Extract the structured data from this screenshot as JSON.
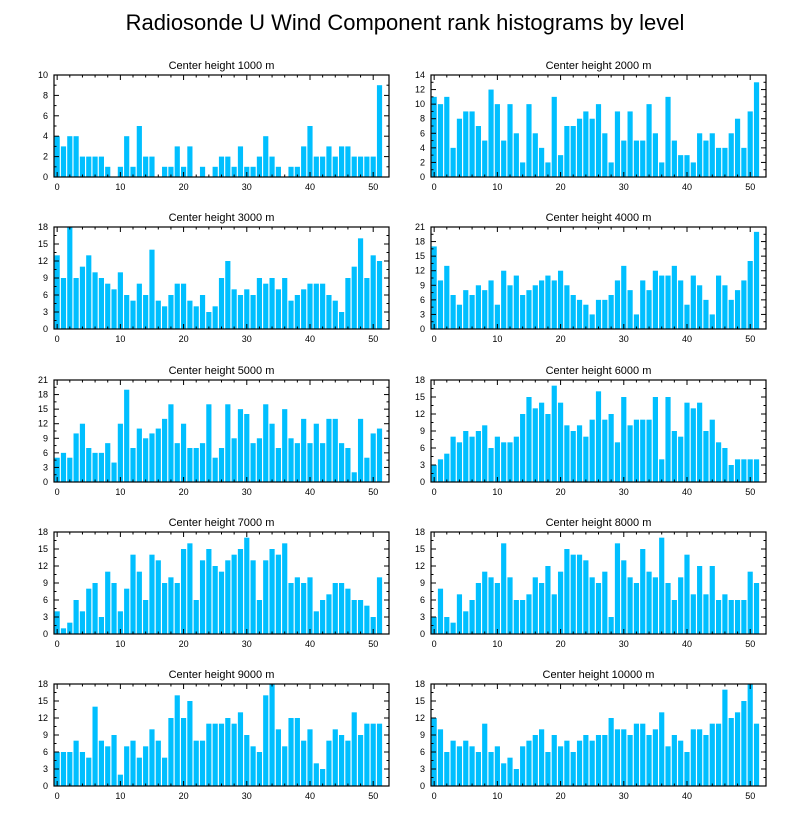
{
  "title": "Radiosonde U Wind Component rank histograms by level",
  "bar_color": "#00bfff",
  "chart_data": [
    {
      "type": "bar",
      "title": "Center height 1000 m",
      "x": [
        0,
        1,
        2,
        3,
        4,
        5,
        6,
        7,
        8,
        9,
        10,
        11,
        12,
        13,
        14,
        15,
        16,
        17,
        18,
        19,
        20,
        21,
        22,
        23,
        24,
        25,
        26,
        27,
        28,
        29,
        30,
        31,
        32,
        33,
        34,
        35,
        36,
        37,
        38,
        39,
        40,
        41,
        42,
        43,
        44,
        45,
        46,
        47,
        48,
        49,
        50,
        51
      ],
      "values": [
        4,
        3,
        4,
        4,
        2,
        2,
        2,
        2,
        1,
        0,
        1,
        4,
        1,
        5,
        2,
        2,
        0,
        1,
        1,
        3,
        1,
        3,
        0,
        1,
        0,
        1,
        2,
        2,
        1,
        3,
        1,
        1,
        2,
        4,
        2,
        1,
        0,
        1,
        1,
        3,
        5,
        2,
        2,
        3,
        2,
        3,
        3,
        2,
        2,
        2,
        2,
        9
      ],
      "xticks": [
        0,
        10,
        20,
        30,
        40,
        50
      ],
      "yticks": [
        0,
        2,
        4,
        6,
        8,
        10
      ],
      "ylim": [
        0,
        10
      ]
    },
    {
      "type": "bar",
      "title": "Center height 2000 m",
      "x": [
        0,
        1,
        2,
        3,
        4,
        5,
        6,
        7,
        8,
        9,
        10,
        11,
        12,
        13,
        14,
        15,
        16,
        17,
        18,
        19,
        20,
        21,
        22,
        23,
        24,
        25,
        26,
        27,
        28,
        29,
        30,
        31,
        32,
        33,
        34,
        35,
        36,
        37,
        38,
        39,
        40,
        41,
        42,
        43,
        44,
        45,
        46,
        47,
        48,
        49,
        50,
        51
      ],
      "values": [
        11,
        10,
        11,
        4,
        8,
        9,
        9,
        7,
        5,
        12,
        10,
        5,
        10,
        6,
        2,
        10,
        6,
        4,
        2,
        11,
        3,
        7,
        7,
        8,
        9,
        8,
        10,
        6,
        2,
        9,
        5,
        9,
        5,
        5,
        10,
        6,
        2,
        11,
        5,
        3,
        3,
        2,
        6,
        5,
        6,
        4,
        4,
        6,
        8,
        4,
        9,
        13
      ],
      "xticks": [
        0,
        10,
        20,
        30,
        40,
        50
      ],
      "yticks": [
        0,
        2,
        4,
        6,
        8,
        10,
        12,
        14
      ],
      "ylim": [
        0,
        14
      ]
    },
    {
      "type": "bar",
      "title": "Center height 3000 m",
      "x": [
        0,
        1,
        2,
        3,
        4,
        5,
        6,
        7,
        8,
        9,
        10,
        11,
        12,
        13,
        14,
        15,
        16,
        17,
        18,
        19,
        20,
        21,
        22,
        23,
        24,
        25,
        26,
        27,
        28,
        29,
        30,
        31,
        32,
        33,
        34,
        35,
        36,
        37,
        38,
        39,
        40,
        41,
        42,
        43,
        44,
        45,
        46,
        47,
        48,
        49,
        50,
        51
      ],
      "values": [
        13,
        9,
        18,
        9,
        11,
        13,
        10,
        9,
        8,
        7,
        10,
        6,
        5,
        8,
        6,
        14,
        5,
        4,
        6,
        8,
        8,
        5,
        4,
        6,
        3,
        4,
        9,
        12,
        7,
        6,
        7,
        6,
        9,
        8,
        9,
        7,
        9,
        5,
        6,
        7,
        8,
        8,
        8,
        6,
        5,
        3,
        9,
        11,
        16,
        9,
        13,
        12
      ],
      "xticks": [
        0,
        10,
        20,
        30,
        40,
        50
      ],
      "yticks": [
        0,
        3,
        6,
        9,
        12,
        15,
        18
      ],
      "ylim": [
        0,
        18
      ]
    },
    {
      "type": "bar",
      "title": "Center height 4000 m",
      "x": [
        0,
        1,
        2,
        3,
        4,
        5,
        6,
        7,
        8,
        9,
        10,
        11,
        12,
        13,
        14,
        15,
        16,
        17,
        18,
        19,
        20,
        21,
        22,
        23,
        24,
        25,
        26,
        27,
        28,
        29,
        30,
        31,
        32,
        33,
        34,
        35,
        36,
        37,
        38,
        39,
        40,
        41,
        42,
        43,
        44,
        45,
        46,
        47,
        48,
        49,
        50,
        51
      ],
      "values": [
        17,
        10,
        13,
        7,
        5,
        8,
        7,
        9,
        8,
        10,
        5,
        12,
        9,
        11,
        7,
        8,
        9,
        10,
        11,
        10,
        12,
        9,
        7,
        6,
        5,
        3,
        6,
        6,
        7,
        10,
        13,
        8,
        3,
        10,
        8,
        12,
        11,
        11,
        13,
        10,
        5,
        11,
        9,
        6,
        3,
        11,
        9,
        6,
        8,
        10,
        14,
        20
      ],
      "xticks": [
        0,
        10,
        20,
        30,
        40,
        50
      ],
      "yticks": [
        0,
        3,
        6,
        9,
        12,
        15,
        18,
        21
      ],
      "ylim": [
        0,
        21
      ]
    },
    {
      "type": "bar",
      "title": "Center height 5000 m",
      "x": [
        0,
        1,
        2,
        3,
        4,
        5,
        6,
        7,
        8,
        9,
        10,
        11,
        12,
        13,
        14,
        15,
        16,
        17,
        18,
        19,
        20,
        21,
        22,
        23,
        24,
        25,
        26,
        27,
        28,
        29,
        30,
        31,
        32,
        33,
        34,
        35,
        36,
        37,
        38,
        39,
        40,
        41,
        42,
        43,
        44,
        45,
        46,
        47,
        48,
        49,
        50,
        51
      ],
      "values": [
        5,
        6,
        5,
        10,
        12,
        7,
        6,
        6,
        8,
        4,
        12,
        19,
        7,
        11,
        9,
        10,
        11,
        13,
        16,
        8,
        12,
        7,
        7,
        8,
        16,
        5,
        7,
        16,
        9,
        15,
        14,
        8,
        9,
        16,
        12,
        7,
        15,
        9,
        8,
        13,
        8,
        12,
        8,
        13,
        13,
        8,
        7,
        2,
        13,
        5,
        10,
        11
      ],
      "xticks": [
        0,
        10,
        20,
        30,
        40,
        50
      ],
      "yticks": [
        0,
        3,
        6,
        9,
        12,
        15,
        18,
        21
      ],
      "ylim": [
        0,
        21
      ]
    },
    {
      "type": "bar",
      "title": "Center height 6000 m",
      "x": [
        0,
        1,
        2,
        3,
        4,
        5,
        6,
        7,
        8,
        9,
        10,
        11,
        12,
        13,
        14,
        15,
        16,
        17,
        18,
        19,
        20,
        21,
        22,
        23,
        24,
        25,
        26,
        27,
        28,
        29,
        30,
        31,
        32,
        33,
        34,
        35,
        36,
        37,
        38,
        39,
        40,
        41,
        42,
        43,
        44,
        45,
        46,
        47,
        48,
        49,
        50,
        51
      ],
      "values": [
        3,
        4,
        5,
        8,
        7,
        9,
        8,
        9,
        10,
        6,
        8,
        7,
        7,
        8,
        12,
        15,
        13,
        14,
        12,
        17,
        14,
        10,
        9,
        10,
        8,
        11,
        16,
        11,
        12,
        7,
        15,
        10,
        11,
        11,
        11,
        15,
        4,
        15,
        9,
        8,
        14,
        13,
        14,
        9,
        11,
        7,
        6,
        3,
        4,
        4,
        4,
        4
      ],
      "xticks": [
        0,
        10,
        20,
        30,
        40,
        50
      ],
      "yticks": [
        0,
        3,
        6,
        9,
        12,
        15,
        18
      ],
      "ylim": [
        0,
        18
      ]
    },
    {
      "type": "bar",
      "title": "Center height 7000 m",
      "x": [
        0,
        1,
        2,
        3,
        4,
        5,
        6,
        7,
        8,
        9,
        10,
        11,
        12,
        13,
        14,
        15,
        16,
        17,
        18,
        19,
        20,
        21,
        22,
        23,
        24,
        25,
        26,
        27,
        28,
        29,
        30,
        31,
        32,
        33,
        34,
        35,
        36,
        37,
        38,
        39,
        40,
        41,
        42,
        43,
        44,
        45,
        46,
        47,
        48,
        49,
        50,
        51
      ],
      "values": [
        4,
        1,
        2,
        6,
        4,
        8,
        9,
        3,
        11,
        9,
        4,
        8,
        14,
        11,
        6,
        14,
        13,
        9,
        10,
        9,
        15,
        16,
        6,
        13,
        15,
        12,
        11,
        13,
        14,
        15,
        17,
        13,
        6,
        13,
        15,
        14,
        16,
        9,
        10,
        9,
        10,
        4,
        6,
        7,
        9,
        9,
        8,
        6,
        6,
        5,
        3,
        10
      ],
      "xticks": [
        0,
        10,
        20,
        30,
        40,
        50
      ],
      "yticks": [
        0,
        3,
        6,
        9,
        12,
        15,
        18
      ],
      "ylim": [
        0,
        18
      ]
    },
    {
      "type": "bar",
      "title": "Center height 8000 m",
      "x": [
        0,
        1,
        2,
        3,
        4,
        5,
        6,
        7,
        8,
        9,
        10,
        11,
        12,
        13,
        14,
        15,
        16,
        17,
        18,
        19,
        20,
        21,
        22,
        23,
        24,
        25,
        26,
        27,
        28,
        29,
        30,
        31,
        32,
        33,
        34,
        35,
        36,
        37,
        38,
        39,
        40,
        41,
        42,
        43,
        44,
        45,
        46,
        47,
        48,
        49,
        50,
        51
      ],
      "values": [
        3,
        8,
        3,
        2,
        7,
        4,
        6,
        9,
        11,
        10,
        9,
        16,
        10,
        6,
        6,
        7,
        10,
        9,
        12,
        7,
        11,
        15,
        14,
        14,
        13,
        10,
        9,
        11,
        3,
        16,
        13,
        10,
        9,
        15,
        11,
        10,
        17,
        9,
        6,
        10,
        14,
        7,
        12,
        7,
        12,
        6,
        7,
        6,
        6,
        6,
        11,
        9
      ],
      "xticks": [
        0,
        10,
        20,
        30,
        40,
        50
      ],
      "yticks": [
        0,
        3,
        6,
        9,
        12,
        15,
        18
      ],
      "ylim": [
        0,
        18
      ]
    },
    {
      "type": "bar",
      "title": "Center height 9000 m",
      "x": [
        0,
        1,
        2,
        3,
        4,
        5,
        6,
        7,
        8,
        9,
        10,
        11,
        12,
        13,
        14,
        15,
        16,
        17,
        18,
        19,
        20,
        21,
        22,
        23,
        24,
        25,
        26,
        27,
        28,
        29,
        30,
        31,
        32,
        33,
        34,
        35,
        36,
        37,
        38,
        39,
        40,
        41,
        42,
        43,
        44,
        45,
        46,
        47,
        48,
        49,
        50,
        51
      ],
      "values": [
        6,
        6,
        6,
        8,
        6,
        5,
        14,
        8,
        7,
        9,
        2,
        7,
        8,
        5,
        7,
        10,
        8,
        5,
        12,
        16,
        12,
        15,
        8,
        8,
        11,
        11,
        11,
        12,
        11,
        13,
        9,
        7,
        6,
        16,
        18,
        10,
        7,
        12,
        12,
        8,
        10,
        4,
        3,
        8,
        10,
        9,
        8,
        13,
        9,
        11,
        11,
        11
      ],
      "xticks": [
        0,
        10,
        20,
        30,
        40,
        50
      ],
      "yticks": [
        0,
        3,
        6,
        9,
        12,
        15,
        18
      ],
      "ylim": [
        0,
        18
      ]
    },
    {
      "type": "bar",
      "title": "Center height 10000 m",
      "x": [
        0,
        1,
        2,
        3,
        4,
        5,
        6,
        7,
        8,
        9,
        10,
        11,
        12,
        13,
        14,
        15,
        16,
        17,
        18,
        19,
        20,
        21,
        22,
        23,
        24,
        25,
        26,
        27,
        28,
        29,
        30,
        31,
        32,
        33,
        34,
        35,
        36,
        37,
        38,
        39,
        40,
        41,
        42,
        43,
        44,
        45,
        46,
        47,
        48,
        49,
        50,
        51
      ],
      "values": [
        12,
        10,
        6,
        8,
        7,
        8,
        7,
        6,
        11,
        6,
        7,
        4,
        5,
        3,
        7,
        8,
        9,
        10,
        6,
        9,
        7,
        8,
        6,
        8,
        9,
        8,
        9,
        9,
        12,
        10,
        10,
        9,
        11,
        11,
        9,
        10,
        13,
        7,
        9,
        8,
        6,
        10,
        10,
        9,
        11,
        11,
        17,
        12,
        13,
        15,
        18,
        11
      ],
      "xticks": [
        0,
        10,
        20,
        30,
        40,
        50
      ],
      "yticks": [
        0,
        3,
        6,
        9,
        12,
        15,
        18
      ],
      "ylim": [
        0,
        18
      ]
    }
  ]
}
